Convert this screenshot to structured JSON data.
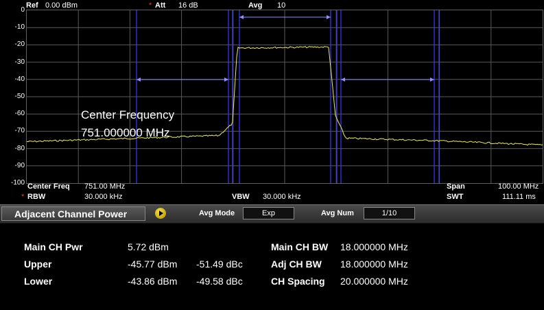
{
  "header": {
    "ref_label": "Ref",
    "ref_value": "0.00 dBm",
    "att_mark": "*",
    "att_label": "Att",
    "att_value": "16 dB",
    "avg_label": "Avg",
    "avg_value": "10"
  },
  "y_ticks": [
    "0",
    "-10",
    "-20",
    "-30",
    "-40",
    "-50",
    "-60",
    "-70",
    "-80",
    "-90",
    "-100"
  ],
  "annotation": {
    "line1": "Center Frequency",
    "line2": "751.000000 MHz"
  },
  "footer": {
    "center_freq_label": "Center Freq",
    "center_freq_value": "751.00 MHz",
    "rbw_mark": "*",
    "rbw_label": "RBW",
    "rbw_value": "30.000 kHz",
    "vbw_label": "VBW",
    "vbw_value": "30.000 kHz",
    "span_label": "Span",
    "span_value": "100.00 MHz",
    "swt_label": "SWT",
    "swt_value": "111.11 ms"
  },
  "toolbar": {
    "mode_label": "Adjacent Channel Power",
    "avg_mode_label": "Avg Mode",
    "avg_mode_value": "Exp",
    "avg_num_label": "Avg Num",
    "avg_num_value": "1/10"
  },
  "results": {
    "main_ch_pwr_label": "Main CH Pwr",
    "main_ch_pwr_value": "5.72 dBm",
    "upper_label": "Upper",
    "upper_dbm": "-45.77 dBm",
    "upper_dbc": "-51.49 dBc",
    "lower_label": "Lower",
    "lower_dbm": "-43.86 dBm",
    "lower_dbc": "-49.58 dBc",
    "main_ch_bw_label": "Main CH BW",
    "main_ch_bw_value": "18.000000 MHz",
    "adj_ch_bw_label": "Adj CH BW",
    "adj_ch_bw_value": "18.000000 MHz",
    "ch_spacing_label": "CH Spacing",
    "ch_spacing_value": "20.000000 MHz"
  },
  "colors": {
    "trace": "#f2f04a",
    "channel_line": "#3838ff",
    "marker": "#9090ff",
    "grid": "#5a5a5a"
  }
}
